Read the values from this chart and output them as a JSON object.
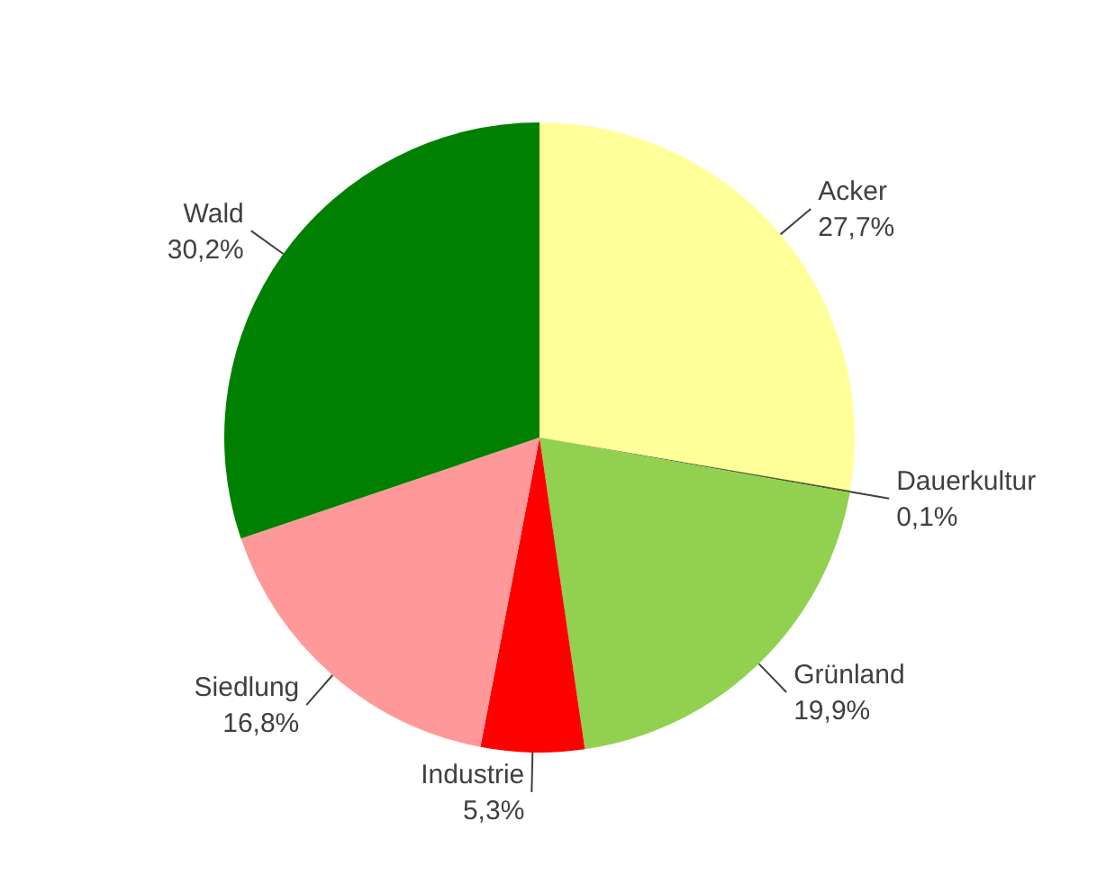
{
  "chart_data": {
    "type": "pie",
    "categories": [
      "Acker",
      "Dauerkultur",
      "Grünland",
      "Industrie",
      "Siedlung",
      "Wald"
    ],
    "values": [
      27.7,
      0.1,
      19.9,
      5.3,
      16.8,
      30.2
    ],
    "colors": [
      "#ffff99",
      "#4f6228",
      "#92d050",
      "#ff0000",
      "#ff9999",
      "#008000"
    ],
    "value_labels": [
      "27,7%",
      "0,1%",
      "19,9%",
      "5,3%",
      "16,8%",
      "30,2%"
    ],
    "legend": false
  }
}
